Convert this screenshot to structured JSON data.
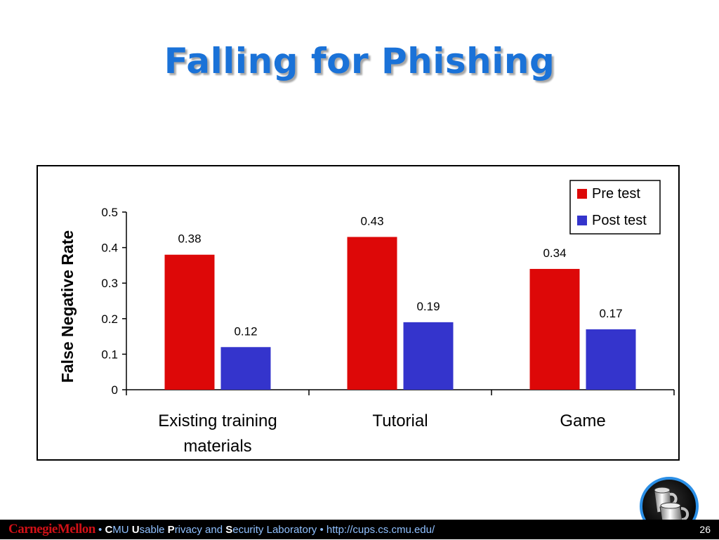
{
  "slide": {
    "title": "Falling for Phishing",
    "page_number": "26"
  },
  "footer": {
    "logo_text": "CarnegieMellon",
    "bullet": " • ",
    "lab_parts": [
      {
        "text": "C",
        "highlight": true
      },
      {
        "text": "MU ",
        "highlight": false
      },
      {
        "text": "U",
        "highlight": true
      },
      {
        "text": "sable ",
        "highlight": false
      },
      {
        "text": "P",
        "highlight": true
      },
      {
        "text": "rivacy and ",
        "highlight": false
      },
      {
        "text": "S",
        "highlight": true
      },
      {
        "text": "ecurity Laboratory",
        "highlight": false
      }
    ],
    "url": "http://cups.cs.cmu.edu/"
  },
  "icons": {
    "lab_icon": "mug-icon"
  },
  "chart_data": {
    "type": "bar",
    "categories": [
      [
        "Existing training",
        "materials"
      ],
      [
        "Tutorial"
      ],
      [
        "Game"
      ]
    ],
    "series": [
      {
        "name": "Pre test",
        "color": "#dd0808",
        "values": [
          0.38,
          0.43,
          0.34
        ],
        "labels": [
          "0.38",
          "0.43",
          "0.34"
        ]
      },
      {
        "name": "Post test",
        "color": "#3434cc",
        "values": [
          0.12,
          0.19,
          0.17
        ],
        "labels": [
          "0.12",
          "0.19",
          "0.17"
        ]
      }
    ],
    "title": "",
    "xlabel": "",
    "ylabel": "False Negative Rate",
    "ylim": [
      0,
      0.5
    ],
    "yticks": [
      "0",
      "0.1",
      "0.2",
      "0.3",
      "0.4",
      "0.5"
    ],
    "ytick_values": [
      0,
      0.1,
      0.2,
      0.3,
      0.4,
      0.5
    ],
    "grid": false,
    "legend_position": "top-right"
  }
}
